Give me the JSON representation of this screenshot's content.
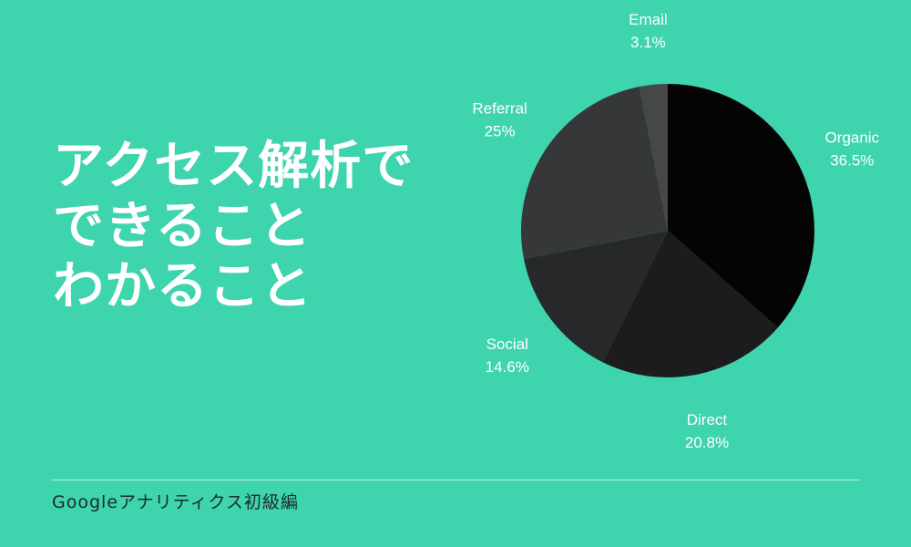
{
  "colors": {
    "background": "#3ed4ad",
    "heading": "#ffffff",
    "footer_text": "#1e2a28",
    "divider": "#b9eedf",
    "slice_colors": [
      "#040405",
      "#1c1c1e",
      "#27282a",
      "#363739",
      "#464747"
    ],
    "label_color": "#ffffff"
  },
  "heading": {
    "lines": [
      "アクセス解析で",
      "できること",
      "わかること"
    ]
  },
  "footer": {
    "text": "Googleアナリティクス初級編"
  },
  "chart_data": {
    "type": "pie",
    "title": "",
    "start_angle_deg": 0,
    "direction": "clockwise",
    "legend": "none",
    "slices": [
      {
        "label": "Organic",
        "value": 36.5,
        "display": "36.5%"
      },
      {
        "label": "Direct",
        "value": 20.8,
        "display": "20.8%"
      },
      {
        "label": "Social",
        "value": 14.6,
        "display": "14.6%"
      },
      {
        "label": "Referral",
        "value": 25,
        "display": "25%"
      },
      {
        "label": "Email",
        "value": 3.1,
        "display": "3.1%"
      }
    ]
  }
}
